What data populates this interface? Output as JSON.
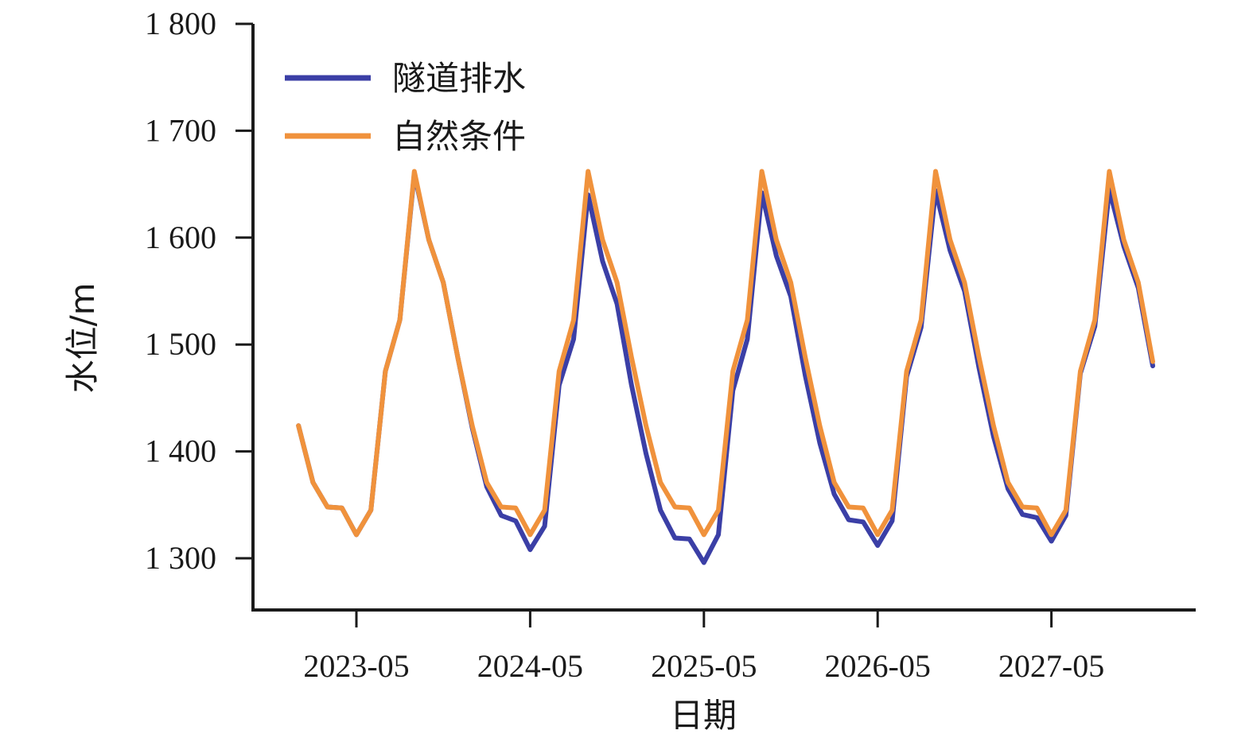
{
  "chart_data": {
    "type": "line",
    "xlabel": "日期",
    "ylabel": "水位/m",
    "ylim": [
      1250,
      1800
    ],
    "yticks": [
      1300,
      1400,
      1500,
      1600,
      1700,
      1800
    ],
    "ytick_labels": [
      "1 300",
      "1 400",
      "1 500",
      "1 600",
      "1 700",
      "1 800"
    ],
    "xticks": [
      "2023-05",
      "2024-05",
      "2025-05",
      "2026-05",
      "2027-05"
    ],
    "xlim": [
      "2022-11",
      "2027-12"
    ],
    "legend_position": "top-left",
    "grid": false,
    "x": [
      "2023-01",
      "2023-02",
      "2023-03",
      "2023-04",
      "2023-05",
      "2023-06",
      "2023-07",
      "2023-08",
      "2023-09",
      "2023-10",
      "2023-11",
      "2023-12",
      "2024-01",
      "2024-02",
      "2024-03",
      "2024-04",
      "2024-05",
      "2024-06",
      "2024-07",
      "2024-08",
      "2024-09",
      "2024-10",
      "2024-11",
      "2024-12",
      "2025-01",
      "2025-02",
      "2025-03",
      "2025-04",
      "2025-05",
      "2025-06",
      "2025-07",
      "2025-08",
      "2025-09",
      "2025-10",
      "2025-11",
      "2025-12",
      "2026-01",
      "2026-02",
      "2026-03",
      "2026-04",
      "2026-05",
      "2026-06",
      "2026-07",
      "2026-08",
      "2026-09",
      "2026-10",
      "2026-11",
      "2026-12",
      "2027-01",
      "2027-02",
      "2027-03",
      "2027-04",
      "2027-05",
      "2027-06",
      "2027-07",
      "2027-08",
      "2027-09",
      "2027-10",
      "2027-11",
      "2027-12"
    ],
    "series": [
      {
        "name": "隧道排水",
        "color": "#3b3fa6",
        "values": [
          1424,
          1371,
          1348,
          1347,
          1322,
          1345,
          1475,
          1523,
          1660,
          1598,
          1558,
          1488,
          1422,
          1367,
          1340,
          1335,
          1308,
          1330,
          1462,
          1505,
          1640,
          1578,
          1538,
          1462,
          1398,
          1345,
          1319,
          1318,
          1296,
          1322,
          1457,
          1505,
          1642,
          1583,
          1545,
          1471,
          1408,
          1360,
          1336,
          1334,
          1312,
          1335,
          1470,
          1516,
          1644,
          1588,
          1550,
          1478,
          1414,
          1365,
          1341,
          1338,
          1316,
          1340,
          1473,
          1517,
          1645,
          1592,
          1553,
          1480
        ]
      },
      {
        "name": "自然条件",
        "color": "#f0923c",
        "values": [
          1424,
          1371,
          1348,
          1347,
          1322,
          1345,
          1475,
          1523,
          1662,
          1598,
          1558,
          1488,
          1424,
          1371,
          1348,
          1347,
          1322,
          1345,
          1475,
          1523,
          1662,
          1598,
          1558,
          1488,
          1424,
          1371,
          1348,
          1347,
          1322,
          1345,
          1475,
          1523,
          1662,
          1598,
          1558,
          1488,
          1424,
          1371,
          1348,
          1347,
          1322,
          1345,
          1475,
          1523,
          1662,
          1598,
          1558,
          1488,
          1424,
          1371,
          1348,
          1347,
          1322,
          1345,
          1475,
          1523,
          1662,
          1598,
          1558,
          1484
        ]
      }
    ]
  }
}
